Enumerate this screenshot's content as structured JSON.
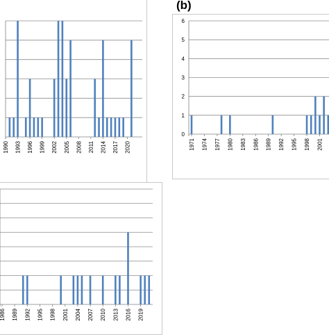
{
  "panel_labels": {
    "b": "(b)"
  },
  "colors": {
    "bar": "#4f81bd",
    "grid": "#8c8c8c",
    "axis": "#808080",
    "text": "#000000",
    "border": "#c8c8c8"
  },
  "chart_data": [
    {
      "id": "a",
      "type": "bar",
      "title": "",
      "xlabel": "",
      "ylabel": "",
      "grid": true,
      "y_tick_labels_visible": false,
      "ylim": [
        0,
        6
      ],
      "x_tick_labels": [
        "1990",
        "1993",
        "1996",
        "1999",
        "2002",
        "2005",
        "2008",
        "2011",
        "2014",
        "2017",
        "2020"
      ],
      "x": [
        1990,
        1991,
        1992,
        1993,
        1994,
        1995,
        1996,
        1997,
        1998,
        1999,
        2000,
        2001,
        2002,
        2003,
        2004,
        2005,
        2006,
        2007,
        2008,
        2009,
        2010,
        2011,
        2012,
        2013,
        2014,
        2015,
        2016,
        2017,
        2018,
        2019,
        2020,
        2021
      ],
      "values": [
        0,
        1,
        1,
        6,
        0,
        1,
        3,
        1,
        1,
        1,
        0,
        0,
        3,
        6,
        6,
        3,
        5,
        0,
        0,
        0,
        0,
        0,
        3,
        1,
        5,
        1,
        1,
        1,
        1,
        1,
        0,
        5
      ]
    },
    {
      "id": "b",
      "type": "bar",
      "title": "",
      "xlabel": "",
      "ylabel": "",
      "grid": true,
      "ylim": [
        0,
        6
      ],
      "y_ticks": [
        0,
        1,
        2,
        3,
        4,
        5,
        6
      ],
      "x_tick_labels": [
        "1971",
        "1974",
        "1977",
        "1980",
        "1983",
        "1986",
        "1989",
        "1992",
        "1995",
        "1998",
        "2001"
      ],
      "x": [
        1971,
        1972,
        1973,
        1974,
        1975,
        1976,
        1977,
        1978,
        1979,
        1980,
        1981,
        1982,
        1983,
        1984,
        1985,
        1986,
        1987,
        1988,
        1989,
        1990,
        1991,
        1992,
        1993,
        1994,
        1995,
        1996,
        1997,
        1998,
        1999,
        2000,
        2001,
        2002,
        2003
      ],
      "values": [
        1,
        0,
        0,
        0,
        0,
        0,
        0,
        1,
        0,
        1,
        0,
        0,
        0,
        0,
        0,
        0,
        0,
        0,
        0,
        1,
        0,
        0,
        0,
        0,
        0,
        0,
        0,
        1,
        1,
        2,
        1,
        2,
        1
      ]
    },
    {
      "id": "c",
      "type": "bar",
      "title": "",
      "xlabel": "",
      "ylabel": "",
      "grid": true,
      "y_tick_labels_visible": false,
      "ylim": [
        0,
        8
      ],
      "x_tick_labels": [
        "1986",
        "1989",
        "1992",
        "1995",
        "1998",
        "2001",
        "2004",
        "2007",
        "2010",
        "2013",
        "2016",
        "2019"
      ],
      "x": [
        1986,
        1987,
        1988,
        1989,
        1990,
        1991,
        1992,
        1993,
        1994,
        1995,
        1996,
        1997,
        1998,
        1999,
        2000,
        2001,
        2002,
        2003,
        2004,
        2005,
        2006,
        2007,
        2008,
        2009,
        2010,
        2011,
        2012,
        2013,
        2014,
        2015,
        2016,
        2017,
        2018,
        2019,
        2020,
        2021
      ],
      "values": [
        0,
        0,
        0,
        0,
        0,
        2,
        2,
        0,
        0,
        0,
        0,
        0,
        0,
        0,
        2,
        0,
        0,
        2,
        2,
        2,
        0,
        2,
        0,
        0,
        2,
        0,
        0,
        2,
        2,
        0,
        5,
        0,
        0,
        2,
        2,
        2
      ]
    }
  ]
}
